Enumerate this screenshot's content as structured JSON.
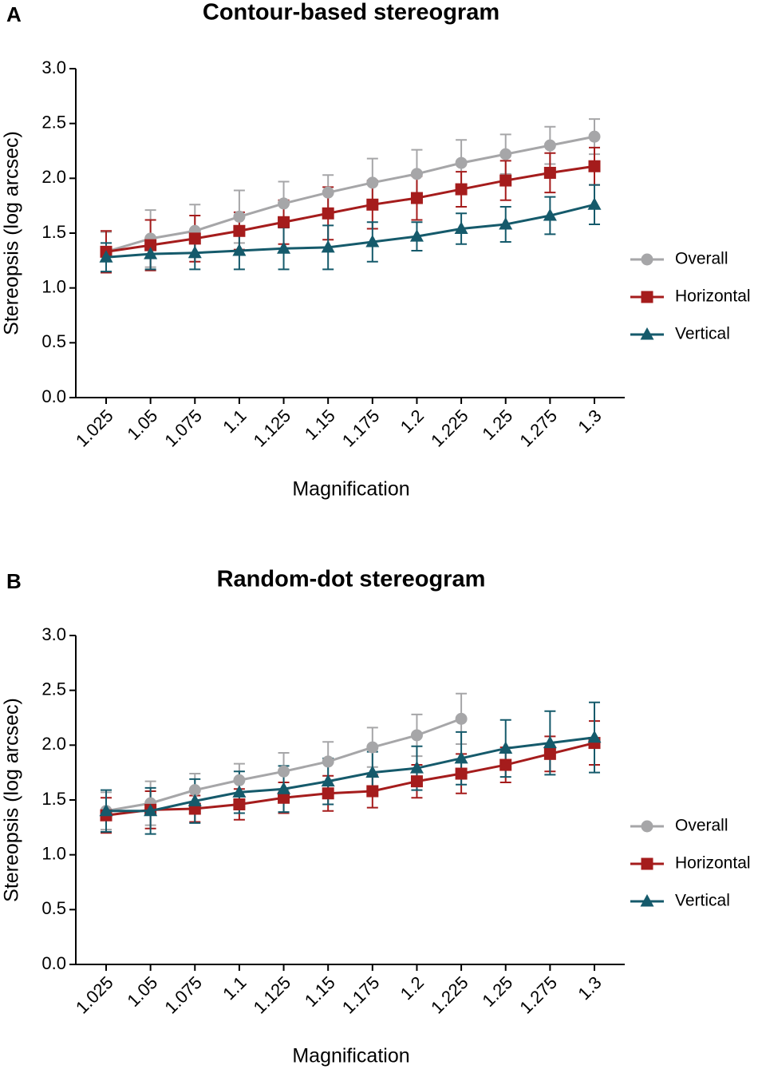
{
  "chart_data": [
    {
      "type": "line",
      "label": "A",
      "title": "Contour-based stereogram",
      "x_label": "Magnification",
      "y_label": "Stereopsis (log arcsec)",
      "categories": [
        "1.025",
        "1.05",
        "1.075",
        "1.1",
        "1.125",
        "1.15",
        "1.175",
        "1.2",
        "1.225",
        "1.25",
        "1.275",
        "1.3"
      ],
      "ylim": [
        0,
        3
      ],
      "yticks": [
        {
          "value": 0,
          "label": "0.0"
        },
        0.5,
        {
          "value": 1,
          "label": "1.0"
        },
        1.5,
        {
          "value": 2,
          "label": "2.0"
        },
        2.5,
        {
          "value": 3,
          "label": "3.0"
        }
      ],
      "series": [
        {
          "name": "Overall",
          "color": "#a6a6a8",
          "marker": "circle",
          "values": [
            1.33,
            1.45,
            1.52,
            1.65,
            1.77,
            1.87,
            1.96,
            2.04,
            2.14,
            2.22,
            2.3,
            2.38
          ],
          "errors": [
            0.18,
            0.26,
            0.24,
            0.24,
            0.2,
            0.16,
            0.22,
            0.22,
            0.21,
            0.18,
            0.17,
            0.16
          ]
        },
        {
          "name": "Horizontal",
          "color": "#a51c1c",
          "marker": "square",
          "values": [
            1.33,
            1.39,
            1.45,
            1.52,
            1.6,
            1.68,
            1.76,
            1.82,
            1.9,
            1.98,
            2.05,
            2.11
          ],
          "errors": [
            0.19,
            0.23,
            0.21,
            0.17,
            0.2,
            0.24,
            0.22,
            0.2,
            0.16,
            0.18,
            0.18,
            0.17
          ]
        },
        {
          "name": "Vertical",
          "color": "#155a6b",
          "marker": "triangle",
          "values": [
            1.28,
            1.31,
            1.32,
            1.34,
            1.36,
            1.37,
            1.42,
            1.47,
            1.54,
            1.58,
            1.66,
            1.76
          ],
          "errors": [
            0.13,
            0.14,
            0.15,
            0.17,
            0.19,
            0.2,
            0.18,
            0.13,
            0.14,
            0.16,
            0.17,
            0.18
          ]
        }
      ]
    },
    {
      "type": "line",
      "label": "B",
      "title": "Random-dot stereogram",
      "x_label": "Magnification",
      "y_label": "Stereopsis (log arcsec)",
      "categories": [
        "1.025",
        "1.05",
        "1.075",
        "1.1",
        "1.125",
        "1.15",
        "1.175",
        "1.2",
        "1.225",
        "1.25",
        "1.275",
        "1.3"
      ],
      "ylim": [
        0,
        3
      ],
      "yticks": [
        {
          "value": 0,
          "label": "0.0"
        },
        0.5,
        {
          "value": 1,
          "label": "1.0"
        },
        1.5,
        {
          "value": 2,
          "label": "2.0"
        },
        2.5,
        {
          "value": 3,
          "label": "3.0"
        }
      ],
      "series": [
        {
          "name": "Overall",
          "color": "#a6a6a8",
          "marker": "circle",
          "values": [
            1.4,
            1.47,
            1.59,
            1.68,
            1.76,
            1.85,
            1.98,
            2.09,
            2.24,
            null,
            null,
            null
          ],
          "errors": [
            0.17,
            0.2,
            0.15,
            0.15,
            0.17,
            0.18,
            0.18,
            0.19,
            0.23,
            null,
            null,
            null
          ]
        },
        {
          "name": "Horizontal",
          "color": "#a51c1c",
          "marker": "square",
          "values": [
            1.36,
            1.41,
            1.42,
            1.46,
            1.52,
            1.56,
            1.58,
            1.67,
            1.74,
            1.82,
            1.92,
            2.02
          ],
          "errors": [
            0.16,
            0.17,
            0.12,
            0.14,
            0.14,
            0.16,
            0.15,
            0.15,
            0.18,
            0.16,
            0.16,
            0.2
          ]
        },
        {
          "name": "Vertical",
          "color": "#155a6b",
          "marker": "triangle",
          "values": [
            1.4,
            1.4,
            1.49,
            1.57,
            1.6,
            1.67,
            1.75,
            1.79,
            1.88,
            1.97,
            2.02,
            2.07
          ],
          "errors": [
            0.19,
            0.21,
            0.2,
            0.19,
            0.21,
            0.21,
            0.19,
            0.2,
            0.24,
            0.26,
            0.29,
            0.32
          ]
        }
      ]
    }
  ]
}
